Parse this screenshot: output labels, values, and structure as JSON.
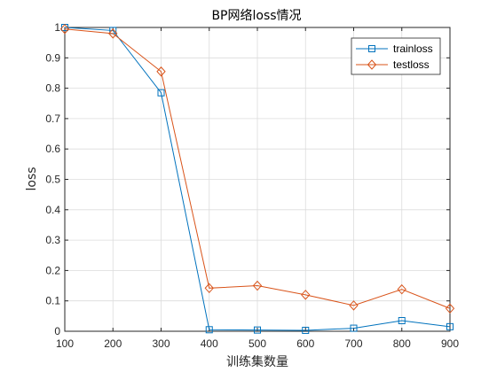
{
  "chart_data": {
    "type": "line",
    "title": "BP网络loss情况",
    "xlabel": "训练集数量",
    "ylabel": "loss",
    "x": [
      100,
      200,
      300,
      400,
      500,
      600,
      700,
      800,
      900
    ],
    "xlim": [
      100,
      900
    ],
    "ylim": [
      0,
      1
    ],
    "xticks": [
      "100",
      "200",
      "300",
      "400",
      "500",
      "600",
      "700",
      "800",
      "900"
    ],
    "yticks": [
      "0",
      "0.1",
      "0.2",
      "0.3",
      "0.4",
      "0.5",
      "0.6",
      "0.7",
      "0.8",
      "0.9",
      "1"
    ],
    "grid": true,
    "legend_position": "top-right",
    "series": [
      {
        "name": "trainloss",
        "marker": "square",
        "color": "#0072BD",
        "values": [
          1.0,
          0.99,
          0.785,
          0.005,
          0.004,
          0.003,
          0.01,
          0.035,
          0.015
        ]
      },
      {
        "name": "testloss",
        "marker": "diamond",
        "color": "#D95319",
        "values": [
          0.995,
          0.98,
          0.855,
          0.142,
          0.15,
          0.12,
          0.085,
          0.138,
          0.075
        ]
      }
    ]
  }
}
